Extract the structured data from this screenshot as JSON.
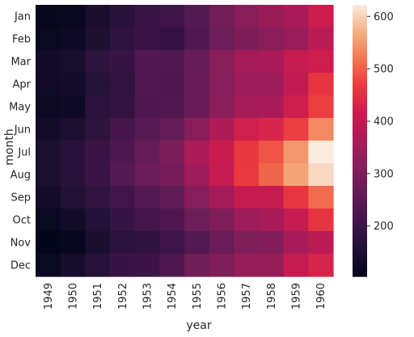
{
  "chart_data": {
    "type": "heatmap",
    "title": "",
    "xlabel": "year",
    "ylabel": "month",
    "x_categories": [
      "1949",
      "1950",
      "1951",
      "1952",
      "1953",
      "1954",
      "1955",
      "1956",
      "1957",
      "1958",
      "1959",
      "1960"
    ],
    "y_categories": [
      "Jan",
      "Feb",
      "Mar",
      "Apr",
      "May",
      "Jun",
      "Jul",
      "Aug",
      "Sep",
      "Oct",
      "Nov",
      "Dec"
    ],
    "values": [
      [
        112,
        115,
        145,
        171,
        196,
        204,
        242,
        284,
        315,
        340,
        360,
        417
      ],
      [
        118,
        126,
        150,
        180,
        196,
        188,
        233,
        277,
        301,
        318,
        342,
        391
      ],
      [
        132,
        141,
        178,
        193,
        236,
        235,
        267,
        317,
        356,
        362,
        406,
        419
      ],
      [
        129,
        135,
        163,
        181,
        235,
        227,
        269,
        313,
        348,
        348,
        396,
        461
      ],
      [
        121,
        125,
        172,
        183,
        229,
        234,
        270,
        318,
        355,
        363,
        420,
        472
      ],
      [
        135,
        149,
        178,
        218,
        243,
        264,
        315,
        374,
        422,
        435,
        472,
        535
      ],
      [
        148,
        170,
        199,
        230,
        264,
        302,
        364,
        413,
        465,
        491,
        548,
        622
      ],
      [
        148,
        170,
        199,
        242,
        272,
        293,
        347,
        405,
        467,
        505,
        559,
        606
      ],
      [
        136,
        158,
        184,
        209,
        237,
        259,
        312,
        355,
        404,
        404,
        463,
        508
      ],
      [
        119,
        133,
        162,
        191,
        211,
        229,
        274,
        306,
        347,
        359,
        407,
        461
      ],
      [
        104,
        114,
        146,
        172,
        180,
        203,
        237,
        271,
        305,
        310,
        362,
        390
      ],
      [
        118,
        140,
        166,
        194,
        201,
        229,
        278,
        306,
        336,
        337,
        405,
        432
      ]
    ],
    "colorbar": {
      "min": 104,
      "max": 622,
      "ticks": [
        200,
        300,
        400,
        500,
        600
      ]
    },
    "colormap": "rocket"
  }
}
